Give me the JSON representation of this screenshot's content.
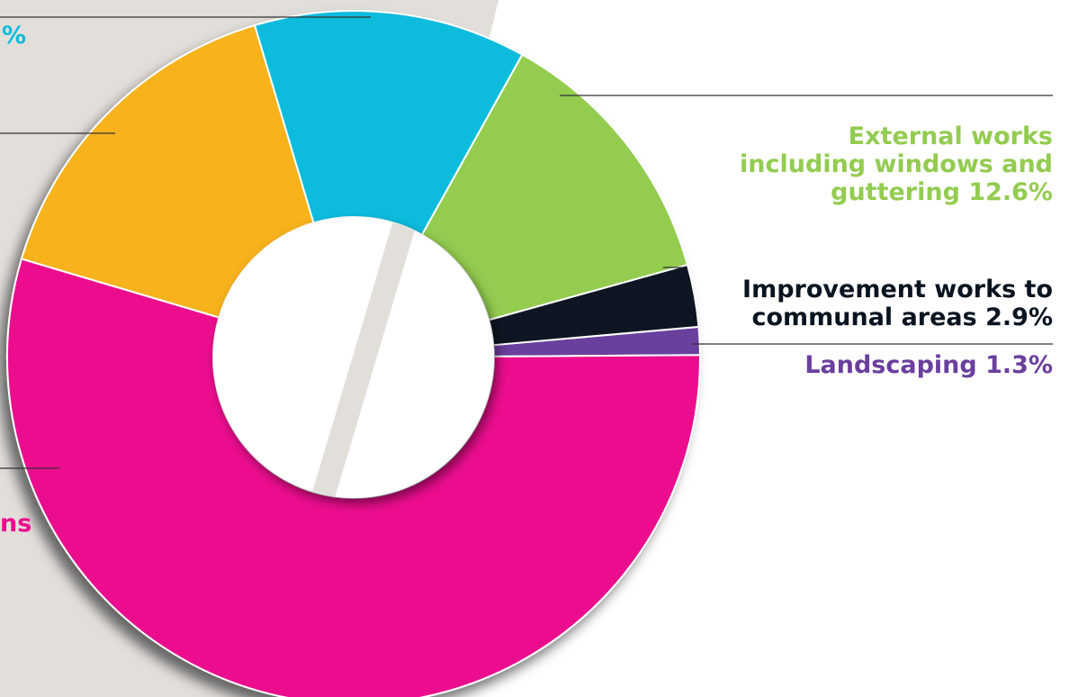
{
  "chart_data": {
    "type": "pie",
    "variant": "donut",
    "title": "",
    "slices": [
      {
        "label": "Landscaping 1.3%",
        "value": 1.3,
        "color": "#6a3f9e"
      },
      {
        "label": "Improvement works to communal areas 2.9%",
        "label_lines": [
          "Improvement works to",
          "communal areas 2.9%"
        ],
        "value": 2.9,
        "color": "#0a1420"
      },
      {
        "label": "External works including windows and guttering 12.6%",
        "label_lines": [
          "External works",
          "including windows and",
          "guttering 12.6%"
        ],
        "value": 12.6,
        "color": "#93cc50"
      },
      {
        "label": "%",
        "value": 12.7,
        "color": "#0bbcdd"
      },
      {
        "label": "",
        "value": 15.8,
        "color": "#f7b21e"
      },
      {
        "label": "ns",
        "value": 54.7,
        "color": "#ec0a8e"
      }
    ],
    "legend": "none",
    "grid": false
  }
}
